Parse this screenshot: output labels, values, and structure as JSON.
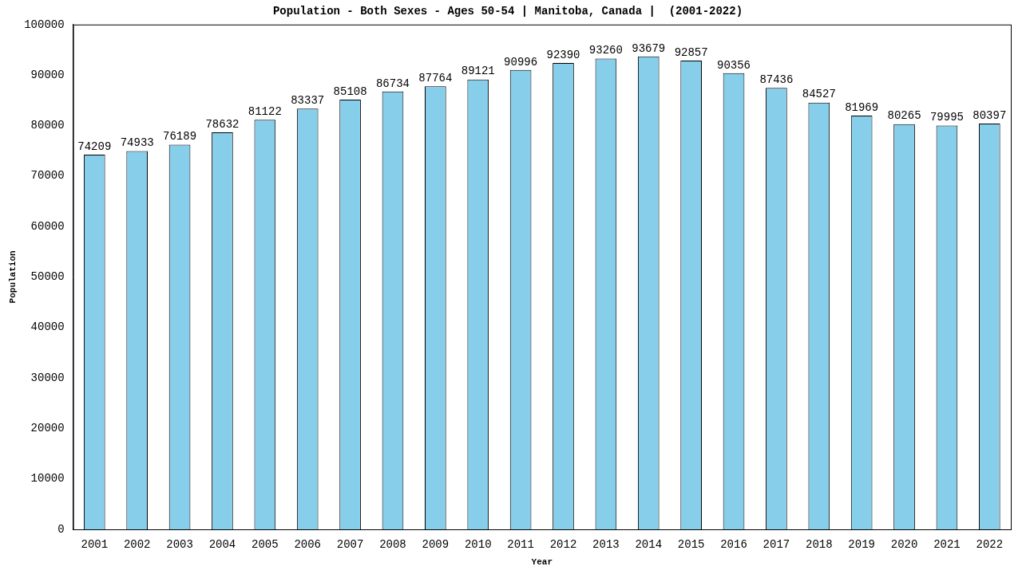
{
  "chart_data": {
    "type": "bar",
    "title": "Population - Both Sexes - Ages 50-54 | Manitoba, Canada |  (2001-2022)",
    "x_label": "Year",
    "y_label": "Population",
    "categories": [
      "2001",
      "2002",
      "2003",
      "2004",
      "2005",
      "2006",
      "2007",
      "2008",
      "2009",
      "2010",
      "2011",
      "2012",
      "2013",
      "2014",
      "2015",
      "2016",
      "2017",
      "2018",
      "2019",
      "2020",
      "2021",
      "2022"
    ],
    "values": [
      74209,
      74933,
      76189,
      78632,
      81122,
      83337,
      85108,
      86734,
      87764,
      89121,
      90996,
      92390,
      93260,
      93679,
      92857,
      90356,
      87436,
      84527,
      81969,
      80265,
      79995,
      80397
    ],
    "color": "#87ceeb",
    "ylim": [
      0,
      100000
    ],
    "yticks": [
      0,
      10000,
      20000,
      30000,
      40000,
      50000,
      60000,
      70000,
      80000,
      90000,
      100000
    ],
    "grid": false,
    "data_labels": true
  }
}
